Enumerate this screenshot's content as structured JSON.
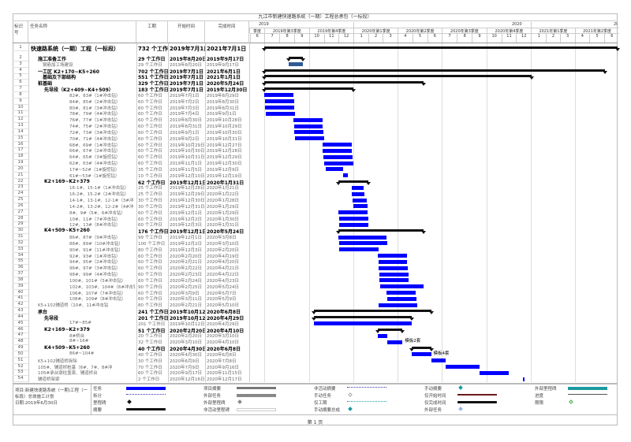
{
  "title": "九江市新建快速路系统（一期）工程总承包（一标段）",
  "columns": {
    "id": "标识号",
    "name": "任务名称",
    "duration": "工期",
    "start": "开始时间",
    "finish": "完成时间"
  },
  "timeline": {
    "years": [
      "2019",
      "2020",
      "20"
    ],
    "quarters": [
      "季度",
      "2019年第3季度",
      "2019年第4季度",
      "2020年第1季度",
      "2020年第2季度",
      "2020年第3季度",
      "2020年第4季度",
      "2021年第1季度",
      "2021年第2季度"
    ],
    "months": [
      "6",
      "7",
      "8",
      "9",
      "10",
      "11",
      "12",
      "1",
      "2",
      "3",
      "4",
      "5",
      "6",
      "7",
      "8",
      "9",
      "10",
      "11",
      "12",
      "1",
      "2",
      "3",
      "4",
      "5",
      "6"
    ]
  },
  "rows": [
    {
      "id": "1",
      "name": "快速路系统（一期）工程（一标段）",
      "duration": "732 个工作日",
      "start": "2019年7月1日",
      "finish": "2021年7月1日",
      "level": 0,
      "type": "summary"
    },
    {
      "id": "2",
      "name": "施工准备工作",
      "duration": "29 个工作日",
      "start": "2019年8月20日",
      "finish": "2019年9月17日",
      "level": 1,
      "type": "summary"
    },
    {
      "id": "3",
      "name": "钢筋加工场建设",
      "duration": "29 个工作日",
      "start": "2019年8月20日",
      "finish": "2019年9月17日",
      "level": 2,
      "type": "alt"
    },
    {
      "id": "4",
      "name": "一工区 K2+170~K5+260",
      "duration": "702 个工作日",
      "start": "2019年7月1日",
      "finish": "2021年6月1日",
      "level": 1,
      "type": "summary"
    },
    {
      "id": "5",
      "name": "基础及下部结构",
      "duration": "551 个工作日",
      "start": "2019年7月1日",
      "finish": "2021年1月1日",
      "level": 2,
      "type": "summary"
    },
    {
      "id": "6",
      "name": "桩基础",
      "duration": "329 个工作日",
      "start": "2019年7月1日",
      "finish": "2020年5月24日",
      "level": 3,
      "type": "summary"
    },
    {
      "id": "7",
      "name": "先导段（K2+409~K4+509）",
      "duration": "183 个工作日",
      "start": "2019年7月1日",
      "finish": "2019年12月30日",
      "level": 4,
      "type": "summary"
    },
    {
      "id": "8",
      "name": "82#、83#（1#冲击钻）",
      "duration": "60 个工作日",
      "start": "2019年7月1日",
      "finish": "2019年8月29日",
      "level": 5,
      "type": "task"
    },
    {
      "id": "9",
      "name": "84#、85#（2#冲击钻）",
      "duration": "60 个工作日",
      "start": "2019年7月2日",
      "finish": "2019年8月30日",
      "level": 5,
      "type": "task"
    },
    {
      "id": "10",
      "name": "80#、81#（3#冲击钻）",
      "duration": "60 个工作日",
      "start": "2019年7月3日",
      "finish": "2019年8月31日",
      "level": 5,
      "type": "task"
    },
    {
      "id": "11",
      "name": "78#、79#（4#冲击钻）",
      "duration": "60 个工作日",
      "start": "2019年7月4日",
      "finish": "2019年9月1日",
      "level": 5,
      "type": "task"
    },
    {
      "id": "12",
      "name": "76#、77#（1#冲击钻）",
      "duration": "60 个工作日",
      "start": "2019年8月30日",
      "finish": "2019年10月28日",
      "level": 5,
      "type": "task"
    },
    {
      "id": "13",
      "name": "74#、75#（2#冲击钻）",
      "duration": "60 个工作日",
      "start": "2019年8月31日",
      "finish": "2019年10月29日",
      "level": 5,
      "type": "task"
    },
    {
      "id": "14",
      "name": "72#、73#（3#冲击钻）",
      "duration": "60 个工作日",
      "start": "2019年9月1日",
      "finish": "2019年10月30日",
      "level": 5,
      "type": "task"
    },
    {
      "id": "15",
      "name": "70#、71#（4#冲击钻）",
      "duration": "60 个工作日",
      "start": "2019年9月2日",
      "finish": "2019年10月31日",
      "level": 5,
      "type": "task"
    },
    {
      "id": "16",
      "name": "68#、69#（1#冲击钻）",
      "duration": "60 个工作日",
      "start": "2019年10月29日",
      "finish": "2019年12月27日",
      "level": 5,
      "type": "task"
    },
    {
      "id": "17",
      "name": "66#、67#（2#冲击钻）",
      "duration": "60 个工作日",
      "start": "2019年10月30日",
      "finish": "2019年12月28日",
      "level": 5,
      "type": "task"
    },
    {
      "id": "18",
      "name": "64#、65#（3#旋挖钻）",
      "duration": "60 个工作日",
      "start": "2019年10月31日",
      "finish": "2019年12月29日",
      "level": 5,
      "type": "task"
    },
    {
      "id": "19",
      "name": "62#、63#（4#冲击钻）",
      "duration": "60 个工作日",
      "start": "2019年11月1日",
      "finish": "2019年12月30日",
      "level": 5,
      "type": "task"
    },
    {
      "id": "20",
      "name": "17#~52#（1#旋挖钻）",
      "duration": "35 个工作日",
      "start": "2019年11月5日",
      "finish": "2019年12月9日",
      "level": 5,
      "type": "task"
    },
    {
      "id": "21",
      "name": "61#~53#（1#旋挖钻）",
      "duration": "10 个工作日",
      "start": "2019年12月10日",
      "finish": "2019年12月19日",
      "level": 5,
      "type": "task"
    },
    {
      "id": "22",
      "name": "K2+169~K2+379",
      "duration": "62 个工作日",
      "start": "2019年12月1日",
      "finish": "2020年1月31日",
      "level": 4,
      "type": "summary"
    },
    {
      "id": "23",
      "name": "16-1#、15-1#（1#冲击钻）",
      "duration": "25 个工作日",
      "start": "2019年12月28日",
      "finish": "2020年1月21日",
      "level": 5,
      "type": "task"
    },
    {
      "id": "24",
      "name": "16-2#、15-2#（2#冲击钻）",
      "duration": "25 个工作日",
      "start": "2019年12月29日",
      "finish": "2020年1月22日",
      "level": 5,
      "type": "task"
    },
    {
      "id": "25",
      "name": "14-1#、13-1#、12-1#（3#冲",
      "duration": "30 个工作日",
      "start": "2019年12月30日",
      "finish": "2020年1月28日",
      "level": 5,
      "type": "task"
    },
    {
      "id": "26",
      "name": "14-2#、13-2#、12-2#（4#冲",
      "duration": "30 个工作日",
      "start": "2019年12月31日",
      "finish": "2020年1月29日",
      "level": 5,
      "type": "task"
    },
    {
      "id": "27",
      "name": "8#、9#（5#、6#冲击钻）",
      "duration": "60 个工作日",
      "start": "2019年12月1日",
      "finish": "2020年1月29日",
      "level": 5,
      "type": "task"
    },
    {
      "id": "28",
      "name": "10#、11#（7#冲击钻）",
      "duration": "60 个工作日",
      "start": "2019年12月2日",
      "finish": "2020年1月30日",
      "level": 5,
      "type": "task"
    },
    {
      "id": "29",
      "name": "12#、13#（8#冲击钻）",
      "duration": "60 个工作日",
      "start": "2019年12月3日",
      "finish": "2020年1月31日",
      "level": 5,
      "type": "task"
    },
    {
      "id": "30",
      "name": "K4+509~K5+260",
      "duration": "176 个工作日",
      "start": "2019年12月1日",
      "finish": "2020年5月24日",
      "level": 4,
      "type": "summary"
    },
    {
      "id": "31",
      "name": "86#、87#（9#冲击钻）",
      "duration": "99 个工作日",
      "start": "2019年12月1日",
      "finish": "2020年3月8日",
      "level": 5,
      "type": "task"
    },
    {
      "id": "32",
      "name": "88#、89#（10#冲击钻）",
      "duration": "100 个工作日",
      "start": "2019年12月2日",
      "finish": "2020年3月10日",
      "level": 5,
      "type": "task"
    },
    {
      "id": "33",
      "name": "90#、91#（11#冲击钻）",
      "duration": "80 个工作日",
      "start": "2019年12月3日",
      "finish": "2020年2月20日",
      "level": 5,
      "type": "task"
    },
    {
      "id": "34",
      "name": "92#、93#（1#冲击钻）",
      "duration": "60 个工作日",
      "start": "2020年2月20日",
      "finish": "2020年4月19日",
      "level": 5,
      "type": "task"
    },
    {
      "id": "35",
      "name": "94#、95#（2#冲击钻）",
      "duration": "60 个工作日",
      "start": "2020年2月21日",
      "finish": "2020年4月20日",
      "level": 5,
      "type": "task"
    },
    {
      "id": "36",
      "name": "96#、97#（3#冲击钻）",
      "duration": "60 个工作日",
      "start": "2020年2月22日",
      "finish": "2020年4月21日",
      "level": 5,
      "type": "task"
    },
    {
      "id": "37",
      "name": "98#、99#（4#冲击钻）",
      "duration": "60 个工作日",
      "start": "2020年2月23日",
      "finish": "2020年4月22日",
      "level": 5,
      "type": "task"
    },
    {
      "id": "38",
      "name": "100#、101#（5#冲击钻）",
      "duration": "60 个工作日",
      "start": "2020年2月24日",
      "finish": "2020年4月23日",
      "level": 5,
      "type": "task"
    },
    {
      "id": "39",
      "name": "102#、103#、104#（6#冲击钻",
      "duration": "90 个工作日",
      "start": "2020年2月25日",
      "finish": "2020年5月24日",
      "level": 5,
      "type": "task"
    },
    {
      "id": "40",
      "name": "106#、107#（7#冲击钻）",
      "duration": "60 个工作日",
      "start": "2020年3月9日",
      "finish": "2020年5月7日",
      "level": 5,
      "type": "task"
    },
    {
      "id": "41",
      "name": "108#、109#（8#冲击钻）",
      "duration": "60 个工作日",
      "start": "2020年3月11日",
      "finish": "2020年5月9日",
      "level": 5,
      "type": "task"
    },
    {
      "id": "42",
      "name": "K5+102辅道桥（10#、11#冲击钻",
      "duration": "80 个工作日",
      "start": "2020年2月21日",
      "finish": "2020年5月10日",
      "level": 3,
      "type": "task"
    },
    {
      "id": "43",
      "name": "承台",
      "duration": "241 个工作日",
      "start": "2019年10月12日",
      "finish": "2020年6月8日",
      "level": 3,
      "type": "summary"
    },
    {
      "id": "44",
      "name": "先导段",
      "duration": "201 个工作日",
      "start": "2019年10月12日",
      "finish": "2020年4月29日",
      "level": 4,
      "type": "summary"
    },
    {
      "id": "45",
      "name": "17#~85#",
      "duration": "201 个工作日",
      "start": "2019年10月12日",
      "finish": "2020年4月29日",
      "level": 5,
      "type": "task"
    },
    {
      "id": "46",
      "name": "K2+169~K2+379",
      "duration": "51 个工作日",
      "start": "2020年2月20日",
      "finish": "2020年4月10日",
      "level": 4,
      "type": "summary"
    },
    {
      "id": "47",
      "name": "8#桥台",
      "duration": "20 个工作日",
      "start": "2020年2月20日",
      "finish": "2020年3月10日",
      "level": 5,
      "type": "task"
    },
    {
      "id": "48",
      "name": "8#~16#",
      "duration": "32 个工作日",
      "start": "2020年3月10日",
      "finish": "2020年4月10日",
      "level": 5,
      "type": "task",
      "label": "模板2套"
    },
    {
      "id": "49",
      "name": "K4+509~K5+260",
      "duration": "40 个工作日",
      "start": "2020年4月30日",
      "finish": "2020年6月8日",
      "level": 4,
      "type": "summary"
    },
    {
      "id": "50",
      "name": "86#~104#",
      "duration": "40 个工作日",
      "start": "2020年4月30日",
      "finish": "2020年6月8日",
      "level": 5,
      "type": "task",
      "label": "模板4套"
    },
    {
      "id": "51",
      "name": "K5+102辅道桥拆除",
      "duration": "30 个工作日",
      "start": "2020年6月9日",
      "finish": "2020年7月8日",
      "level": 3,
      "type": "task"
    },
    {
      "id": "52",
      "name": "105#、辅道桥桩基（6#、7#、8#冲",
      "duration": "70 个工作日",
      "start": "2020年7月9日",
      "finish": "2020年9月16日",
      "level": 3,
      "type": "task"
    },
    {
      "id": "53",
      "name": "105#承台墩柱盖梁、辅道桥台",
      "duration": "60 个工作日",
      "start": "2020年9月17日",
      "finish": "2020年11月15日",
      "level": 3,
      "type": "task"
    },
    {
      "id": "54",
      "name": "辅道桥架梁",
      "duration": "2 个工作日",
      "start": "2020年12月16日",
      "finish": "2020年12月17日",
      "level": 3,
      "type": "task"
    }
  ],
  "project_info": {
    "project": "项目:新建快速路系统（一期)工程（一标段）总体施工计划",
    "date": "日期:2019年6月30日"
  },
  "legend": [
    {
      "label": "任务",
      "symbol": "blue-bar"
    },
    {
      "label": "拆分",
      "symbol": "dotted-line"
    },
    {
      "label": "里程碑",
      "symbol": "diamond"
    },
    {
      "label": "摘要",
      "symbol": "summary-bar"
    },
    {
      "label": "项目摘要",
      "symbol": "gray-summary-bar"
    },
    {
      "label": "外部任务",
      "symbol": "gray-bar"
    },
    {
      "label": "外部里程碑",
      "symbol": "gray-diamond"
    },
    {
      "label": "非活动里程碑",
      "symbol": "empty-box"
    },
    {
      "label": "非活动摘要",
      "symbol": "dotted-line"
    },
    {
      "label": "手动任务",
      "symbol": "hollow-diamond"
    },
    {
      "label": "仅工期",
      "symbol": "teal-dotted"
    },
    {
      "label": "手动摘要总成",
      "symbol": "teal-diamond"
    },
    {
      "label": "手动摘要",
      "symbol": "teal-diamond"
    },
    {
      "label": "仅开始时间",
      "symbol": "red-line"
    },
    {
      "label": "仅完成时间",
      "symbol": "summary-bar"
    },
    {
      "label": "外部任务",
      "symbol": "light-diamond"
    },
    {
      "label": "外部里程碑",
      "symbol": "teal-bar"
    },
    {
      "label": "进度",
      "symbol": "gray-line"
    },
    {
      "label": "期限",
      "symbol": "green-diamond"
    }
  ],
  "colors": {
    "task": "#0000ff",
    "alt_task": "#2e5b94",
    "summary": "#111111",
    "teal": "#1a9aa0"
  },
  "footer": {
    "page": "第 1 页"
  }
}
